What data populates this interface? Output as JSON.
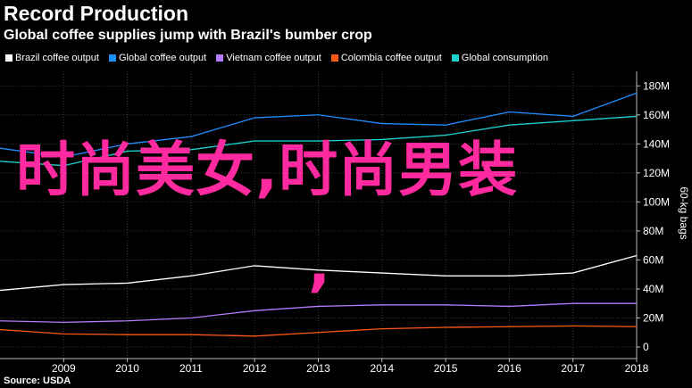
{
  "header": {
    "title": "Record Production",
    "subtitle": "Global coffee supplies jump with Brazil's bumber crop"
  },
  "footer": {
    "source": "Source: USDA"
  },
  "overlay": {
    "text": "时尚美女,时尚男装",
    "comma": ","
  },
  "chart_data": {
    "type": "line",
    "title": "Record Production",
    "subtitle": "Global coffee supplies jump with Brazil's bumber crop",
    "xlabel": "",
    "ylabel": "60-kg bags",
    "x": [
      2008,
      2009,
      2010,
      2011,
      2012,
      2013,
      2014,
      2015,
      2016,
      2017,
      2018
    ],
    "x_ticks": [
      "2009",
      "2010",
      "2011",
      "2012",
      "2013",
      "2014",
      "2015",
      "2016",
      "2017",
      "2018"
    ],
    "xlim": [
      2008,
      2018
    ],
    "ylim": [
      -8,
      190
    ],
    "y_ticks": [
      0,
      20,
      40,
      60,
      80,
      100,
      120,
      140,
      160,
      180
    ],
    "y_tick_labels": [
      "0",
      "20M",
      "40M",
      "60M",
      "80M",
      "100M",
      "120M",
      "140M",
      "160M",
      "180M"
    ],
    "y_axis_side": "right",
    "legend_position": "top",
    "grid": true,
    "series": [
      {
        "name": "Brazil coffee output",
        "color": "#ffffff",
        "values": [
          39,
          43,
          44,
          49,
          56,
          53,
          51,
          49,
          49,
          51,
          63
        ]
      },
      {
        "name": "Global coffee output",
        "color": "#1f8eff",
        "values": [
          137,
          131,
          140,
          145,
          158,
          160,
          154,
          153,
          162,
          159,
          175
        ]
      },
      {
        "name": "Vietnam coffee output",
        "color": "#b57bff",
        "values": [
          18,
          17,
          18,
          20,
          25,
          28,
          29,
          29,
          28,
          30,
          30
        ]
      },
      {
        "name": "Colombia coffee output",
        "color": "#ff5a14",
        "values": [
          12,
          9,
          8.5,
          8.5,
          7.5,
          10,
          12.5,
          13.5,
          14,
          14.5,
          14
        ]
      },
      {
        "name": "Global consumption",
        "color": "#1ed0d0",
        "values": [
          128,
          125,
          135,
          136,
          142,
          142,
          143,
          146,
          153,
          156,
          159
        ]
      }
    ]
  }
}
